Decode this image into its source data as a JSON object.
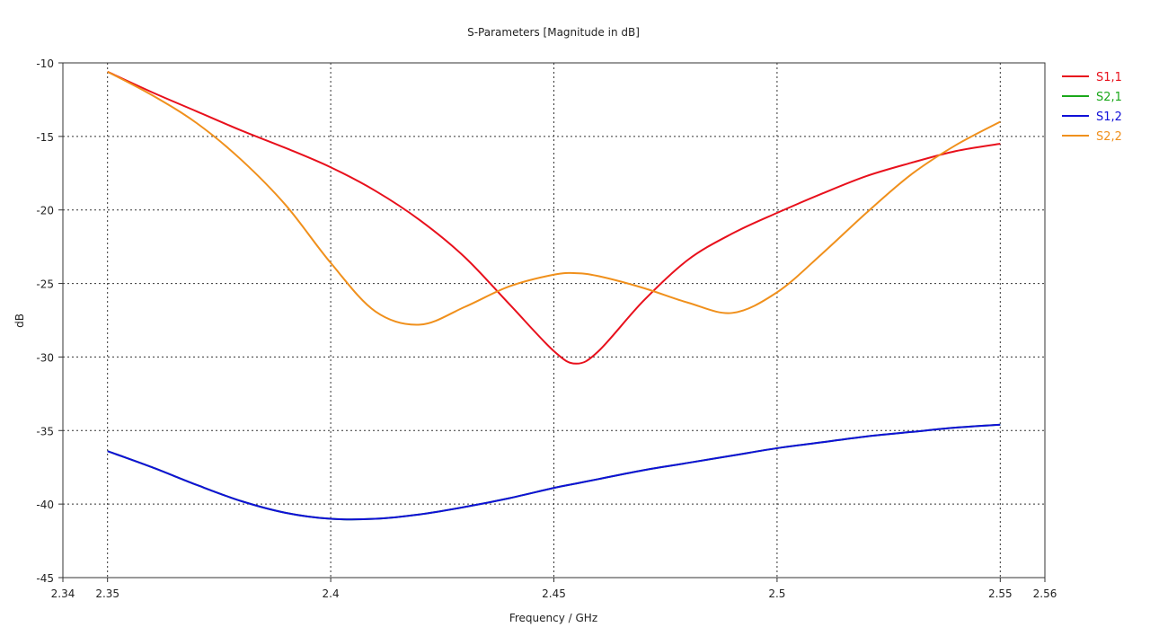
{
  "chart_data": {
    "type": "line",
    "title": "S-Parameters [Magnitude in dB]",
    "xlabel": "Frequency / GHz",
    "ylabel": "dB",
    "xlim": [
      2.34,
      2.56
    ],
    "ylim": [
      -45,
      -10
    ],
    "xticks": [
      2.34,
      2.35,
      2.4,
      2.45,
      2.5,
      2.55,
      2.56
    ],
    "xtick_labels": [
      "2.34",
      "2.35",
      "2.4",
      "2.45",
      "2.5",
      "2.55",
      "2.56"
    ],
    "yticks": [
      -10,
      -15,
      -20,
      -25,
      -30,
      -35,
      -40,
      -45
    ],
    "ytick_labels": [
      "-10",
      "-15",
      "-20",
      "-25",
      "-30",
      "-35",
      "-40",
      "-45"
    ],
    "grid": true,
    "legend_position": "right-top",
    "x": [
      2.35,
      2.36,
      2.37,
      2.38,
      2.39,
      2.4,
      2.41,
      2.42,
      2.43,
      2.44,
      2.45,
      2.455,
      2.46,
      2.47,
      2.48,
      2.49,
      2.5,
      2.51,
      2.52,
      2.53,
      2.54,
      2.55
    ],
    "series": [
      {
        "name": "S1,1",
        "color": "#e8101c",
        "values": [
          -10.6,
          -12.0,
          -13.3,
          -14.6,
          -15.8,
          -17.1,
          -18.7,
          -20.7,
          -23.2,
          -26.4,
          -29.6,
          -30.45,
          -29.6,
          -26.2,
          -23.4,
          -21.6,
          -20.2,
          -18.9,
          -17.7,
          -16.8,
          -16.0,
          -15.5
        ]
      },
      {
        "name": "S2,1",
        "color": "#1aa81a",
        "values": [
          -36.4,
          -37.5,
          -38.7,
          -39.8,
          -40.6,
          -41.0,
          -41.0,
          -40.7,
          -40.2,
          -39.6,
          -38.9,
          -38.6,
          -38.3,
          -37.7,
          -37.2,
          -36.7,
          -36.2,
          -35.8,
          -35.4,
          -35.1,
          -34.8,
          -34.6
        ]
      },
      {
        "name": "S1,2",
        "color": "#1010d8",
        "values": [
          -36.4,
          -37.5,
          -38.7,
          -39.8,
          -40.6,
          -41.0,
          -41.0,
          -40.7,
          -40.2,
          -39.6,
          -38.9,
          -38.6,
          -38.3,
          -37.7,
          -37.2,
          -36.7,
          -36.2,
          -35.8,
          -35.4,
          -35.1,
          -34.8,
          -34.6
        ]
      },
      {
        "name": "S2,2",
        "color": "#f0901c",
        "values": [
          -10.6,
          -12.2,
          -14.1,
          -16.6,
          -19.7,
          -23.6,
          -26.9,
          -27.8,
          -26.6,
          -25.2,
          -24.4,
          -24.3,
          -24.5,
          -25.3,
          -26.3,
          -27.0,
          -25.6,
          -23.0,
          -20.2,
          -17.6,
          -15.6,
          -14.0
        ]
      }
    ]
  }
}
